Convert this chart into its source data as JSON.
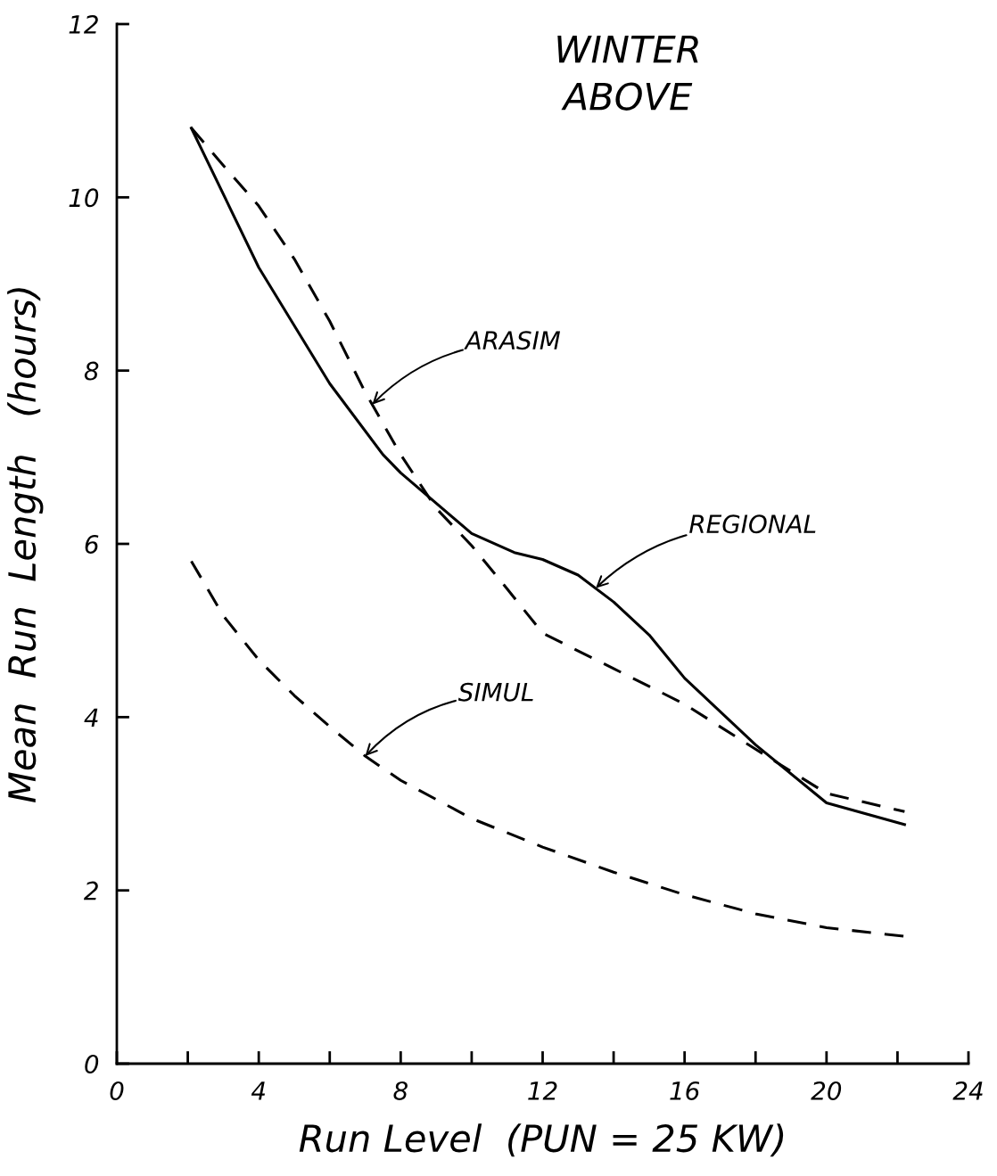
{
  "chart_data": {
    "type": "line",
    "title": "WINTER\nABOVE",
    "xlabel": "Run Level  (PUN = 25 KW)",
    "ylabel": "Mean  Run  Length   (hours)",
    "xlim": [
      0,
      24
    ],
    "ylim": [
      0,
      12
    ],
    "xticks": [
      0,
      {
        "value": 2,
        "label": null
      },
      4,
      {
        "value": 6,
        "label": null
      },
      8,
      {
        "value": 10,
        "label": null
      },
      12,
      {
        "value": 14,
        "label": null
      },
      16,
      {
        "value": 18,
        "label": null
      },
      20,
      {
        "value": 22,
        "label": null
      },
      24
    ],
    "yticks": [
      0,
      2,
      4,
      6,
      8,
      10,
      12
    ],
    "grid": false,
    "legend": false,
    "series": [
      {
        "color": "#000000",
        "line_style": "solid",
        "x": [
          2.1,
          4,
          6,
          7.5,
          8,
          10,
          11.2,
          12,
          13,
          14,
          15,
          16,
          18,
          20,
          22.2
        ],
        "values": [
          10.8,
          9.19,
          7.85,
          7.03,
          6.82,
          6.12,
          5.9,
          5.82,
          5.64,
          5.33,
          4.95,
          4.45,
          3.68,
          3.01,
          2.76
        ]
      },
      {
        "color": "#000000",
        "line_style": "dashed",
        "x": [
          2.1,
          3,
          4,
          5,
          6,
          7,
          8,
          9,
          10,
          11,
          12,
          14,
          16,
          18,
          20,
          22.2
        ],
        "values": [
          10.8,
          10.37,
          9.9,
          9.29,
          8.57,
          7.75,
          7.03,
          6.41,
          5.98,
          5.48,
          4.97,
          4.56,
          4.15,
          3.63,
          3.12,
          2.91
        ]
      },
      {
        "color": "#000000",
        "line_style": "dashed",
        "x": [
          2.1,
          3,
          4,
          5,
          6,
          7,
          8,
          10,
          12,
          14,
          16,
          18,
          20,
          22.2
        ],
        "values": [
          5.8,
          5.17,
          4.66,
          4.25,
          3.89,
          3.55,
          3.27,
          2.83,
          2.5,
          2.21,
          1.95,
          1.73,
          1.57,
          1.47
        ]
      }
    ],
    "annotations": [
      {
        "text": "ARASIM",
        "x": 7.2,
        "y": 7.61
      },
      {
        "text": "REGIONAL",
        "x": 13.5,
        "y": 5.49
      },
      {
        "text": "SIMUL",
        "x": 7,
        "y": 3.55
      }
    ]
  }
}
